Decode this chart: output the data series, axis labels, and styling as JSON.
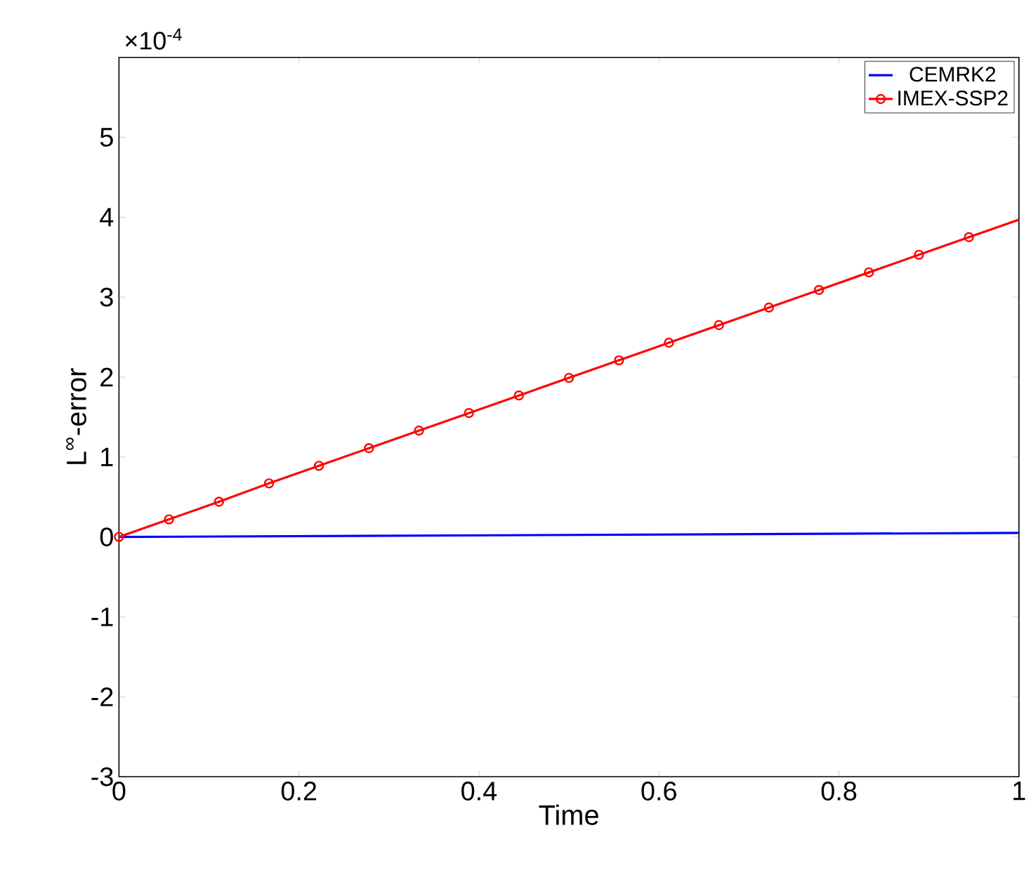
{
  "chart_data": {
    "type": "line",
    "xlabel": "Time",
    "ylabel": "L$^{∞}$-error",
    "annotations": [
      "×10$^{-4}$"
    ],
    "xlim": [
      0,
      1
    ],
    "xticks": [
      0,
      0.2,
      0.4,
      0.6,
      0.8,
      1
    ],
    "ylim": [
      -3,
      6
    ],
    "yticks": [
      -3,
      -2,
      -1,
      0,
      1,
      2,
      3,
      4,
      5
    ],
    "legend": "top right",
    "series": [
      {
        "name": "CEMRK2",
        "color": "#0000ff",
        "marker": "none",
        "x": [
          0,
          1
        ],
        "values": [
          0,
          0.05
        ]
      },
      {
        "name": "IMEX-SSP2",
        "color": "#ff0000",
        "marker": "circle",
        "x": [
          0,
          0.0556,
          0.1111,
          0.1667,
          0.2222,
          0.2778,
          0.3333,
          0.3889,
          0.4444,
          0.5,
          0.5556,
          0.6111,
          0.6667,
          0.7222,
          0.7778,
          0.8333,
          0.8889,
          0.9444,
          1
        ],
        "values": [
          0,
          0.22,
          0.44,
          0.67,
          0.89,
          1.11,
          1.33,
          1.55,
          1.77,
          1.99,
          2.21,
          2.43,
          2.65,
          2.87,
          3.09,
          3.31,
          3.53,
          3.75,
          3.97
        ]
      }
    ]
  }
}
